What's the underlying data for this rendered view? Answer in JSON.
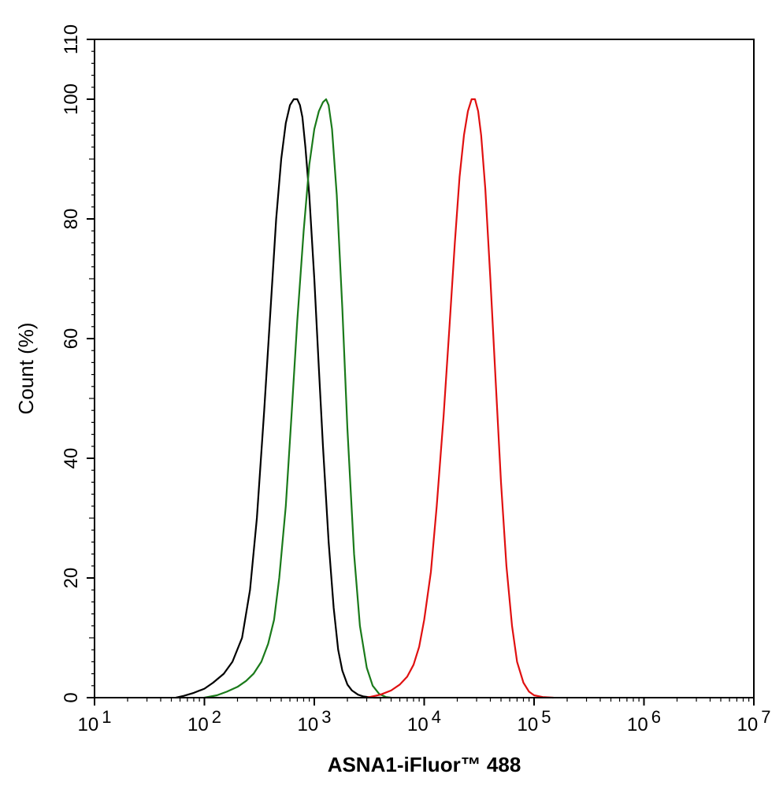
{
  "chart_data": {
    "type": "line",
    "title": "",
    "xlabel": "ASNA1-iFluor™ 488",
    "ylabel": "Count  (%)",
    "xscale": "log",
    "xlim": [
      10,
      10000000
    ],
    "ylim": [
      0,
      110
    ],
    "grid": false,
    "legend": "none",
    "x_ticks": [
      {
        "value": 10,
        "base": "10",
        "exp": "1"
      },
      {
        "value": 100,
        "base": "10",
        "exp": "2"
      },
      {
        "value": 1000,
        "base": "10",
        "exp": "3"
      },
      {
        "value": 10000,
        "base": "10",
        "exp": "4"
      },
      {
        "value": 100000,
        "base": "10",
        "exp": "5"
      },
      {
        "value": 1000000,
        "base": "10",
        "exp": "6"
      },
      {
        "value": 10000000,
        "base": "10",
        "exp": "7"
      }
    ],
    "y_ticks": [
      "0",
      "20",
      "40",
      "60",
      "80",
      "100",
      "110"
    ],
    "series": [
      {
        "color": "#000000",
        "x": [
          55,
          65,
          80,
          100,
          120,
          150,
          180,
          220,
          260,
          300,
          350,
          400,
          450,
          500,
          550,
          600,
          650,
          700,
          740,
          780,
          830,
          900,
          1000,
          1100,
          1200,
          1350,
          1500,
          1650,
          1800,
          2000,
          2200,
          2500,
          2800,
          3100,
          3500,
          4000
        ],
        "y": [
          0,
          0.3,
          0.8,
          1.5,
          2.5,
          4,
          6,
          10,
          18,
          30,
          48,
          65,
          80,
          90,
          96,
          99,
          100,
          100,
          99,
          97,
          92,
          84,
          70,
          55,
          42,
          26,
          15,
          8,
          4.5,
          2.2,
          1.2,
          0.5,
          0.2,
          0.1,
          0,
          0
        ]
      },
      {
        "color": "#1a7a1a",
        "x": [
          100,
          130,
          160,
          200,
          240,
          280,
          330,
          380,
          430,
          480,
          550,
          620,
          700,
          800,
          900,
          1000,
          1100,
          1200,
          1280,
          1350,
          1450,
          1600,
          1800,
          2000,
          2300,
          2600,
          3000,
          3400,
          3900,
          4500,
          5000
        ],
        "y": [
          0,
          0.4,
          1,
          1.8,
          2.8,
          4,
          6,
          9,
          13,
          20,
          32,
          47,
          63,
          78,
          89,
          95,
          98,
          99.5,
          100,
          99,
          95,
          84,
          65,
          45,
          24,
          12,
          5,
          2,
          0.6,
          0.1,
          0
        ]
      },
      {
        "color": "#e01010",
        "x": [
          3000,
          4000,
          5000,
          6000,
          7000,
          8000,
          9000,
          10000,
          11500,
          13000,
          15000,
          17000,
          19000,
          21000,
          23000,
          25000,
          27000,
          29000,
          31000,
          33000,
          36000,
          40000,
          45000,
          50000,
          56000,
          63000,
          70000,
          80000,
          90000,
          100000,
          120000,
          150000
        ],
        "y": [
          0,
          0.5,
          1.2,
          2.2,
          3.5,
          5.5,
          8.5,
          13,
          21,
          32,
          47,
          62,
          76,
          87,
          94,
          98,
          100,
          100,
          98,
          94,
          85,
          70,
          52,
          36,
          22,
          12,
          6,
          2.5,
          1,
          0.4,
          0.1,
          0
        ]
      }
    ]
  }
}
